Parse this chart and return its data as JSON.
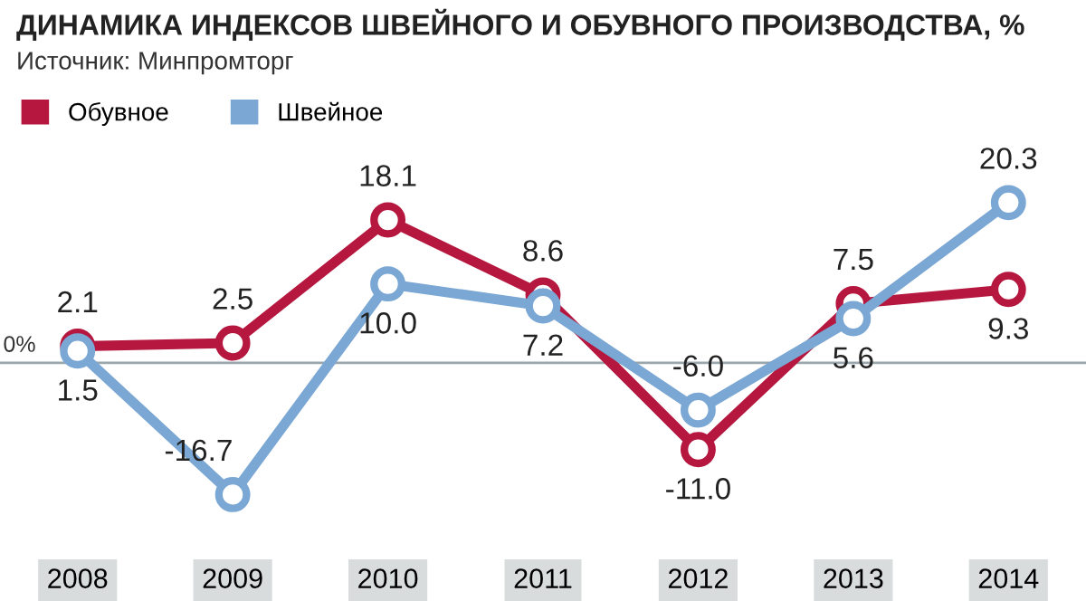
{
  "chart_data": {
    "type": "line",
    "title": "ДИНАМИКА ИНДЕКСОВ ШВЕЙНОГО И ОБУВНОГО ПРОИЗВОДСТВА, %",
    "subtitle": "Источник: Минпромторг",
    "categories": [
      "2008",
      "2009",
      "2010",
      "2011",
      "2012",
      "2013",
      "2014"
    ],
    "series": [
      {
        "name": "Обувное",
        "color": "#b5173f",
        "values": [
          2.1,
          2.5,
          18.1,
          8.6,
          -11.0,
          7.5,
          9.3
        ],
        "value_labels": [
          "2.1",
          "2.5",
          "18.1",
          "8.6",
          "-11.0",
          "7.5",
          "9.3"
        ]
      },
      {
        "name": "Швейное",
        "color": "#7aa7d3",
        "values": [
          1.5,
          -16.7,
          10.0,
          7.2,
          -6.0,
          5.6,
          20.3
        ],
        "value_labels": [
          "1.5",
          "-16.7",
          "10.0",
          "7.2",
          "-6.0",
          "5.6",
          "20.3"
        ]
      }
    ],
    "ref_lines": [
      {
        "axis": "y",
        "value": 0,
        "label": "0%",
        "color": "#9aa7ad"
      }
    ],
    "marker": "circle",
    "line_style": "solid",
    "legend": "top left",
    "grid": false
  }
}
